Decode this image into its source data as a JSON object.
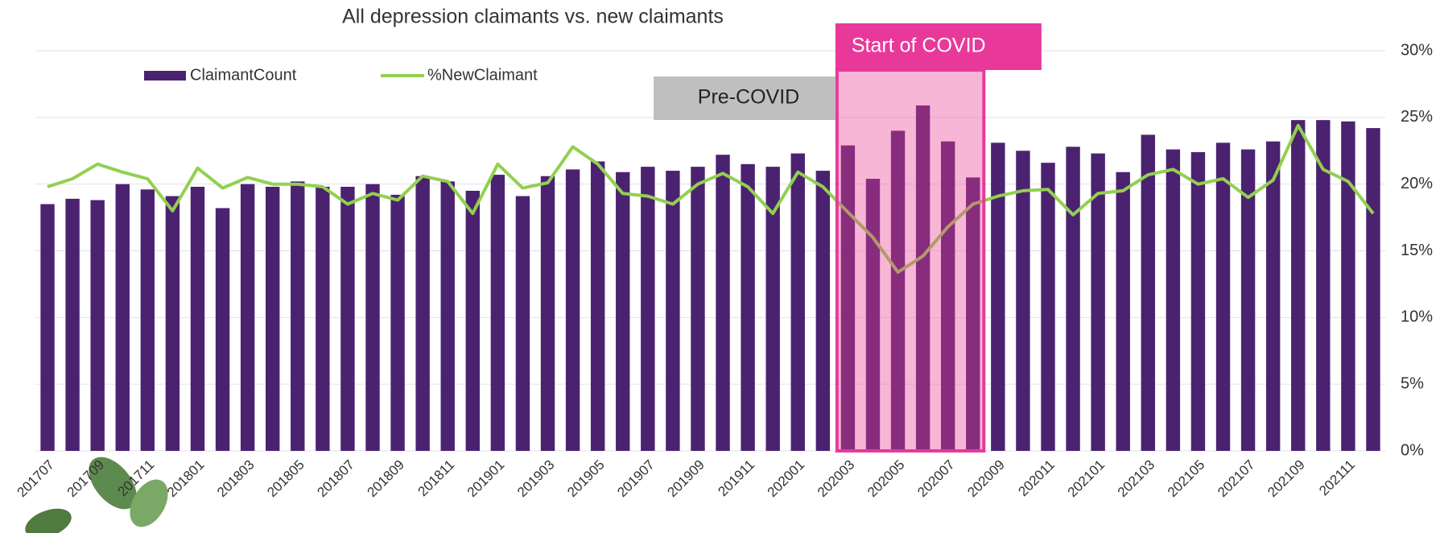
{
  "chart_data": {
    "type": "bar_line",
    "title": "All depression claimants vs. new claimants",
    "categories": [
      "201707",
      null,
      "201709",
      null,
      "201711",
      null,
      "201801",
      null,
      "201803",
      null,
      "201805",
      null,
      "201807",
      null,
      "201809",
      null,
      "201811",
      null,
      "201901",
      null,
      "201903",
      null,
      "201905",
      null,
      "201907",
      null,
      "201909",
      null,
      "201911",
      null,
      "202001",
      null,
      "202003",
      null,
      "202005",
      null,
      "202007",
      null,
      "202009",
      null,
      "202011",
      null,
      "202101",
      null,
      "202103",
      null,
      "202105",
      null,
      "202107",
      null,
      "202109",
      null,
      "202111",
      null
    ],
    "series": [
      {
        "name": "ClaimantCount",
        "color": "#4b2270",
        "kind": "bar",
        "values": [
          18.5,
          18.9,
          18.8,
          20.0,
          19.6,
          19.1,
          19.8,
          18.2,
          20.0,
          19.8,
          20.2,
          19.8,
          19.8,
          20.0,
          19.2,
          20.6,
          20.2,
          19.5,
          20.7,
          19.1,
          20.6,
          21.1,
          21.7,
          20.9,
          21.3,
          21.0,
          21.3,
          22.2,
          21.5,
          21.3,
          22.3,
          21.0,
          22.9,
          20.4,
          24.0,
          25.9,
          23.2,
          20.5,
          23.1,
          22.5,
          21.6,
          22.8,
          22.3,
          20.9,
          23.7,
          22.6,
          22.4,
          23.1,
          22.6,
          23.2,
          24.8,
          24.8,
          24.7,
          24.2
        ]
      },
      {
        "name": "%NewClaimant",
        "color": "#92d050",
        "kind": "line",
        "axis": "y2",
        "values": [
          19.8,
          20.4,
          21.5,
          20.9,
          20.4,
          18.0,
          21.2,
          19.7,
          20.5,
          20.0,
          20.0,
          19.8,
          18.5,
          19.3,
          18.8,
          20.6,
          20.2,
          17.8,
          21.5,
          19.7,
          20.1,
          22.8,
          21.5,
          19.3,
          19.1,
          18.5,
          20.0,
          20.8,
          19.8,
          17.8,
          20.9,
          19.8,
          17.9,
          16.0,
          13.4,
          14.6,
          16.8,
          18.5,
          19.1,
          19.5,
          19.6,
          17.7,
          19.3,
          19.5,
          20.7,
          21.1,
          20.0,
          20.4,
          19.0,
          20.3,
          24.4,
          21.1,
          20.2,
          17.8
        ]
      }
    ],
    "ylim": [
      0,
      30
    ],
    "y2lim": [
      0,
      30
    ],
    "y2ticks": [
      {
        "value": 0,
        "label": "0%"
      },
      {
        "value": 5,
        "label": "5%"
      },
      {
        "value": 10,
        "label": "10%"
      },
      {
        "value": 15,
        "label": "15%"
      },
      {
        "value": 20,
        "label": "20%"
      },
      {
        "value": 25,
        "label": "25%"
      },
      {
        "value": 30,
        "label": "30%"
      }
    ],
    "grid": true,
    "legend": "top-left",
    "annotations": [
      {
        "text": "Pre-COVID"
      },
      {
        "text": "Start of COVID"
      }
    ]
  }
}
